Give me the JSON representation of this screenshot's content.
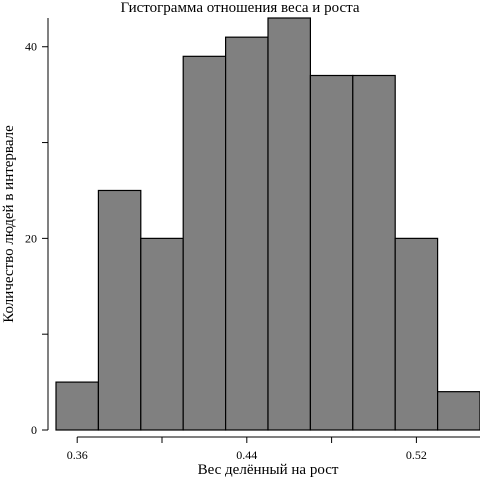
{
  "chart_data": {
    "type": "bar",
    "title": "Гистограмма отношения веса и роста",
    "xlabel": "Вес делённый на рост",
    "ylabel": "Количество людей в интервале",
    "bin_edges": [
      0.35,
      0.37,
      0.39,
      0.41,
      0.43,
      0.45,
      0.47,
      0.49,
      0.51,
      0.53,
      0.55
    ],
    "values": [
      5,
      25,
      20,
      39,
      41,
      43,
      37,
      37,
      20,
      4
    ],
    "xlim": [
      0.35,
      0.55
    ],
    "ylim": [
      0,
      43
    ],
    "x_ticks": [
      0.36,
      0.4,
      0.44,
      0.48,
      0.52
    ],
    "x_tick_labels": [
      "0.36",
      "",
      "0.44",
      "",
      "0.52"
    ],
    "y_ticks": [
      0,
      10,
      20,
      30,
      40
    ],
    "y_tick_labels": [
      "0",
      "",
      "20",
      "",
      "40"
    ],
    "grid": false,
    "colors": {
      "bar_fill": "#808080",
      "bar_edge": "#000000"
    }
  }
}
